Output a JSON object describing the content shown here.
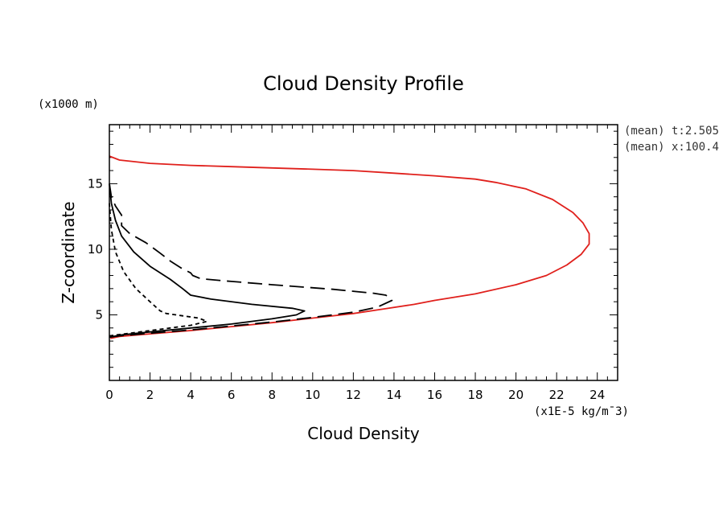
{
  "chart_data": {
    "type": "line",
    "title": "Cloud Density Profile",
    "xlabel": "Cloud Density",
    "ylabel": "Z-coordinate",
    "x_unit": "(x1E-5 kg/m¯3)",
    "y_unit": "(x1000 m)",
    "xlim": [
      0,
      25
    ],
    "ylim": [
      0,
      19.5
    ],
    "x_ticks": [
      0,
      2,
      4,
      6,
      8,
      10,
      12,
      14,
      16,
      18,
      20,
      22,
      24
    ],
    "y_ticks": [
      5,
      10,
      15
    ],
    "grid": false,
    "annotations": [
      "(mean) t:2.505",
      "(mean) x:100.4"
    ],
    "series": [
      {
        "color": "#e0201c",
        "style": "solid",
        "x": [
          0.05,
          0.5,
          2,
          4,
          6,
          8,
          10,
          12,
          13.5,
          15,
          16,
          18,
          20,
          21.5,
          22.5,
          23.2,
          23.6,
          23.6,
          23.3,
          22.8,
          21.8,
          20.5,
          19,
          18,
          16,
          14,
          12,
          10,
          8,
          6,
          4,
          2,
          0.5,
          0
        ],
        "y": [
          3.2,
          3.35,
          3.55,
          3.8,
          4.1,
          4.4,
          4.75,
          5.1,
          5.45,
          5.8,
          6.1,
          6.6,
          7.3,
          8.0,
          8.8,
          9.6,
          10.4,
          11.2,
          12.0,
          12.8,
          13.8,
          14.6,
          15.1,
          15.35,
          15.6,
          15.8,
          16.0,
          16.1,
          16.2,
          16.3,
          16.4,
          16.55,
          16.8,
          17.1
        ]
      },
      {
        "color": "#000000",
        "style": "long-dash",
        "x": [
          0,
          0.5,
          2,
          4,
          6,
          8,
          10,
          12,
          13.2,
          13.9,
          13.6,
          13,
          11,
          8,
          6,
          4.5,
          4.1,
          4.0,
          3.5,
          3,
          2.5,
          1.8,
          1,
          0.6,
          0.6,
          0.3,
          0.1,
          0
        ],
        "y": [
          3.3,
          3.4,
          3.6,
          3.85,
          4.15,
          4.45,
          4.8,
          5.2,
          5.6,
          6.1,
          6.5,
          6.65,
          6.95,
          7.3,
          7.55,
          7.75,
          8.0,
          8.2,
          8.6,
          9.1,
          9.7,
          10.5,
          11.2,
          11.8,
          12.6,
          13.3,
          14.0,
          15.0
        ]
      },
      {
        "color": "#000000",
        "style": "solid",
        "x": [
          0,
          0.5,
          2,
          4,
          6,
          8,
          9.2,
          9.6,
          9.0,
          7,
          5,
          4,
          3.6,
          3.0,
          2.0,
          1.2,
          0.6,
          0.3,
          0.1,
          0
        ],
        "y": [
          3.3,
          3.45,
          3.7,
          4.0,
          4.3,
          4.7,
          5.0,
          5.3,
          5.5,
          5.8,
          6.2,
          6.5,
          7.0,
          7.7,
          8.7,
          9.8,
          11.0,
          12.2,
          13.5,
          15.0
        ]
      },
      {
        "color": "#000000",
        "style": "short-dash",
        "x": [
          0,
          1,
          2.5,
          4,
          4.8,
          4.4,
          3.5,
          2.8,
          2.5,
          2.0,
          1.3,
          0.7,
          0.3,
          0.1,
          0
        ],
        "y": [
          3.4,
          3.6,
          3.9,
          4.2,
          4.5,
          4.75,
          4.95,
          5.1,
          5.3,
          6.0,
          7.0,
          8.3,
          9.8,
          11.5,
          13.5
        ]
      }
    ]
  }
}
